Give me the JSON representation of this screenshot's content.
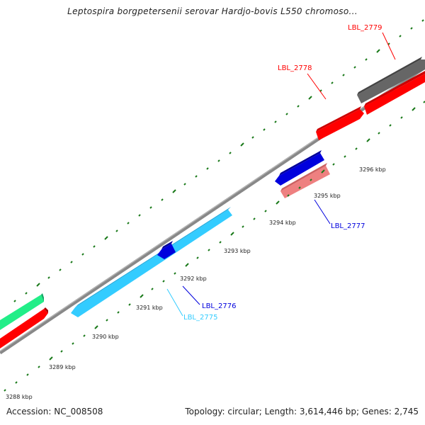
{
  "header": {
    "title": "Leptospira borgpetersenii serovar Hardjo-bovis L550 chromoso..."
  },
  "footer": {
    "accession": "Accession: NC_008508",
    "topology": "Topology: circular; Length: 3,614,446 bp; Genes: 2,745"
  },
  "axis": {
    "tick_labels": [
      "3288 kbp",
      "3289 kbp",
      "3290 kbp",
      "3291 kbp",
      "3292 kbp",
      "3293 kbp",
      "3294 kbp",
      "3295 kbp",
      "3296 kbp"
    ]
  },
  "genes": [
    {
      "label": "LBL_2775",
      "color": "#33ccff",
      "strand": "minus"
    },
    {
      "label": "LBL_2776",
      "color": "#0000dd",
      "strand": "minus"
    },
    {
      "label": "LBL_2777",
      "color": "#ee8080",
      "strand": "minus"
    },
    {
      "label": "LBL_2778",
      "color": "#ff0000",
      "strand": "plus"
    },
    {
      "label": "LBL_2779",
      "color": "#666666",
      "strand": "plus"
    }
  ],
  "colors": {
    "backbone": "#888888",
    "ticks": "#1a7a1a",
    "plus_strand": "#ff0000",
    "minus_strand": "#33ccff"
  }
}
